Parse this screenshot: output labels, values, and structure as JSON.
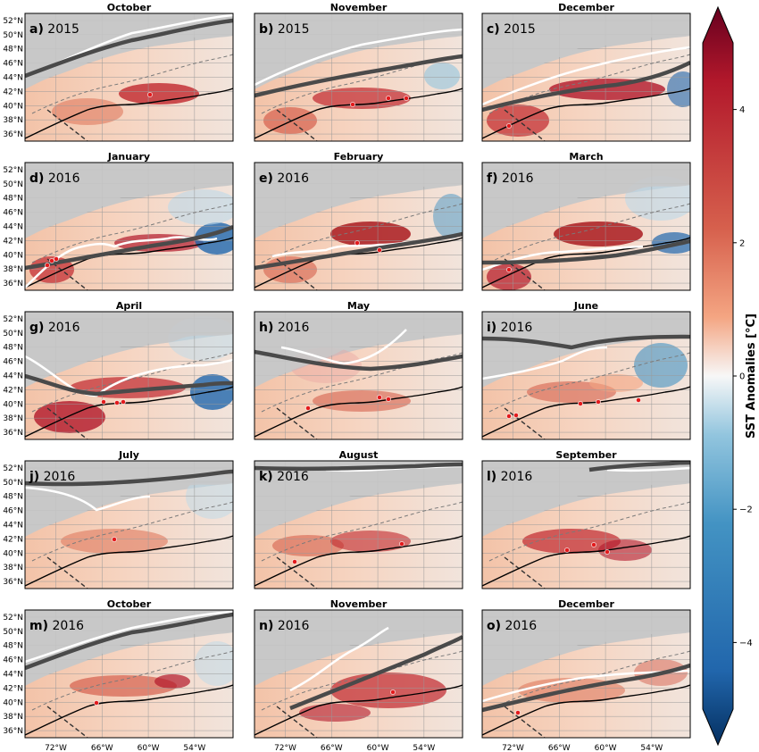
{
  "chart_data": {
    "type": "heatmap",
    "figure_description": "Monthly SST anomaly maps, Northwest Atlantic, Oct 2015 - Dec 2016",
    "colorbar": {
      "label": "SST Anomalies [°C]",
      "vmin": -5,
      "vmax": 5,
      "ticks": [
        4,
        2,
        0,
        -2,
        -4
      ],
      "tick_labels": [
        "4",
        "2",
        "0",
        "−2",
        "−4"
      ],
      "colormap": "RdBu_r",
      "extend": "both"
    },
    "axes": {
      "lat_ticks": [
        "52°N",
        "50°N",
        "48°N",
        "46°N",
        "44°N",
        "42°N",
        "40°N",
        "38°N",
        "36°N"
      ],
      "lon_ticks": [
        "72°W",
        "66°W",
        "60°W",
        "54°W"
      ],
      "lat_range": [
        35,
        53
      ],
      "lon_range": [
        -76,
        -49
      ]
    },
    "panels": [
      {
        "id": "a)",
        "month": "October",
        "year": "2015"
      },
      {
        "id": "b)",
        "month": "November",
        "year": "2015"
      },
      {
        "id": "c)",
        "month": "December",
        "year": "2015"
      },
      {
        "id": "d)",
        "month": "January",
        "year": "2016"
      },
      {
        "id": "e)",
        "month": "February",
        "year": "2016"
      },
      {
        "id": "f)",
        "month": "March",
        "year": "2016"
      },
      {
        "id": "g)",
        "month": "April",
        "year": "2016"
      },
      {
        "id": "h)",
        "month": "May",
        "year": "2016"
      },
      {
        "id": "i)",
        "month": "June",
        "year": "2016"
      },
      {
        "id": "j)",
        "month": "July",
        "year": "2016"
      },
      {
        "id": "k)",
        "month": "August",
        "year": "2016"
      },
      {
        "id": "l)",
        "month": "September",
        "year": "2016"
      },
      {
        "id": "m)",
        "month": "October",
        "year": "2016"
      },
      {
        "id": "n)",
        "month": "November",
        "year": "2016"
      },
      {
        "id": "o)",
        "month": "December",
        "year": "2016"
      }
    ]
  },
  "colors": {
    "land": "#c8c8c8",
    "frame": "#000000",
    "dark_contour": "#4a4a4a",
    "white_contour": "#ffffff",
    "gulf_stream": "#000000",
    "dots": "#e31a1c"
  }
}
